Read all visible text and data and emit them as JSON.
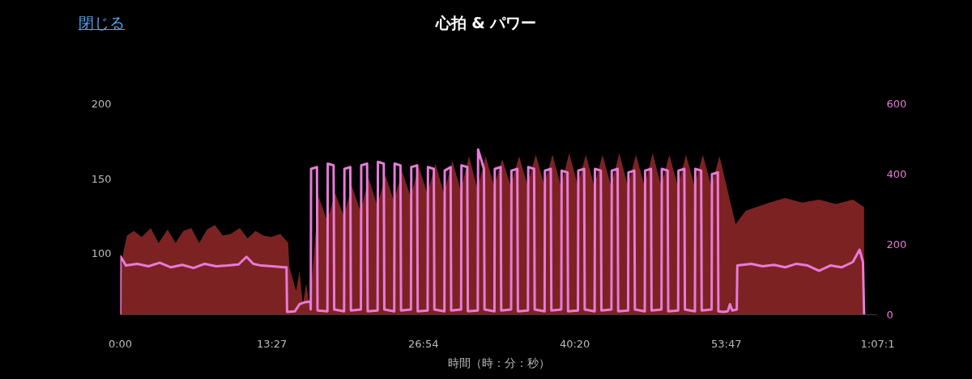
{
  "chart_data": {
    "type": "area",
    "title": "心拍 & パワー",
    "xlabel": "時間（時：分：秒）",
    "annotations": [
      "閉じる"
    ],
    "xlim": [
      0,
      67.2
    ],
    "xticks": [
      {
        "value": 0,
        "label": "0:00"
      },
      {
        "value": 13.45,
        "label": "13:27"
      },
      {
        "value": 26.9,
        "label": "26:54"
      },
      {
        "value": 40.33,
        "label": "40:20"
      },
      {
        "value": 53.78,
        "label": "53:47"
      },
      {
        "value": 67.2,
        "label": "1:07:1"
      }
    ],
    "ylim": [
      59,
      200
    ],
    "yticks": [
      100,
      150,
      200
    ],
    "y2lim": [
      0,
      600
    ],
    "y2ticks": [
      0,
      200,
      400,
      600
    ],
    "grid": false,
    "series": [
      {
        "axis": "y",
        "color": "#7d2222",
        "x": [
          0,
          0.3,
          0.6,
          1.2,
          1.9,
          2.7,
          3.4,
          4.2,
          4.9,
          5.6,
          6.3,
          7.0,
          7.7,
          8.4,
          9.1,
          9.8,
          10.6,
          11.3,
          12.0,
          12.7,
          13.4,
          14.2,
          14.9,
          15.0,
          15.3,
          15.6,
          15.9,
          16.2,
          16.5,
          16.8,
          17.6,
          18.35,
          19.08,
          19.83,
          20.56,
          21.31,
          22.05,
          22.8,
          23.53,
          24.28,
          25.01,
          25.76,
          26.49,
          27.24,
          27.97,
          28.72,
          29.46,
          30.21,
          30.94,
          31.69,
          32.42,
          33.17,
          33.9,
          34.65,
          35.38,
          36.13,
          36.87,
          37.62,
          38.35,
          39.1,
          39.83,
          40.58,
          41.31,
          42.06,
          42.79,
          43.54,
          44.28,
          45.03,
          45.76,
          46.51,
          47.24,
          47.99,
          48.72,
          49.47,
          50.2,
          50.95,
          51.69,
          52.44,
          53.17,
          54.6,
          55.5,
          57.6,
          59,
          60.5,
          62,
          63.5,
          65,
          66.0
        ],
        "values": [
          85,
          102,
          112,
          115,
          111,
          117,
          107,
          116,
          107,
          115,
          117,
          107,
          116,
          119,
          112,
          113,
          117,
          110,
          115,
          112,
          111,
          113,
          107,
          91,
          83,
          75,
          88,
          66,
          80,
          64,
          138,
          122,
          140,
          125,
          145,
          128,
          150,
          132,
          152,
          135,
          155,
          138,
          158,
          140,
          160,
          140,
          162,
          142,
          165,
          143,
          165,
          145,
          163,
          145,
          165,
          146,
          166,
          146,
          166,
          145,
          167,
          146,
          166,
          145,
          166,
          145,
          167,
          145,
          166,
          145,
          167,
          145,
          166,
          145,
          166,
          145,
          166,
          145,
          165,
          119.5,
          128.6,
          134,
          137,
          134,
          136,
          133,
          136,
          131
        ]
      },
      {
        "type": "line",
        "axis": "y2",
        "color": "#e87ad8",
        "x": [
          0,
          0.02,
          0.5,
          1.5,
          2.5,
          3.5,
          4.5,
          5.5,
          6.5,
          7.5,
          8.5,
          9.5,
          10.5,
          11.2,
          11.8,
          12.5,
          13.5,
          14.5,
          14.75,
          14.8,
          15.5,
          15.9,
          16.3,
          16.85,
          16.9,
          16.93,
          17.45,
          17.5,
          18.38,
          18.41,
          18.93,
          18.98,
          19.86,
          19.89,
          20.41,
          20.46,
          21.35,
          21.38,
          21.9,
          21.95,
          22.83,
          22.86,
          23.38,
          23.43,
          24.31,
          24.34,
          24.86,
          24.91,
          25.79,
          25.82,
          26.34,
          26.39,
          27.27,
          27.3,
          27.82,
          27.87,
          28.76,
          28.79,
          29.31,
          29.36,
          30.24,
          30.27,
          30.79,
          30.84,
          31.72,
          31.75,
          32.27,
          32.32,
          33.2,
          33.23,
          33.75,
          33.8,
          34.68,
          34.71,
          35.23,
          35.28,
          36.17,
          36.2,
          36.72,
          36.77,
          37.65,
          37.68,
          38.2,
          38.25,
          39.13,
          39.16,
          39.68,
          39.73,
          40.61,
          40.64,
          41.16,
          41.21,
          42.09,
          42.12,
          42.64,
          42.69,
          43.58,
          43.61,
          44.13,
          44.18,
          45.06,
          45.09,
          45.61,
          45.66,
          46.54,
          46.57,
          47.09,
          47.14,
          48.02,
          48.05,
          48.57,
          48.62,
          49.5,
          49.53,
          50.05,
          50.1,
          50.99,
          51.02,
          51.54,
          51.59,
          52.47,
          52.5,
          53.02,
          53.07,
          53.5,
          53.9,
          54.1,
          54.3,
          54.7,
          54.75,
          56,
          57,
          58,
          59,
          60,
          61,
          62,
          63,
          64,
          65,
          65.6,
          65.9,
          66.0
        ],
        "values": [
          0,
          166,
          140,
          145,
          138,
          148,
          135,
          142,
          133,
          145,
          138,
          140,
          143,
          165,
          145,
          140,
          138,
          135,
          135,
          8,
          10,
          30,
          35,
          38,
          15,
          415,
          420,
          12,
          10,
          430,
          425,
          15,
          10,
          415,
          420,
          12,
          15,
          425,
          430,
          10,
          12,
          435,
          430,
          15,
          10,
          430,
          425,
          12,
          15,
          420,
          425,
          10,
          12,
          420,
          415,
          15,
          10,
          410,
          420,
          12,
          15,
          425,
          420,
          10,
          12,
          470,
          415,
          15,
          10,
          415,
          420,
          12,
          15,
          410,
          415,
          10,
          12,
          420,
          415,
          15,
          10,
          410,
          415,
          12,
          15,
          410,
          405,
          10,
          12,
          410,
          415,
          15,
          10,
          415,
          410,
          12,
          15,
          410,
          415,
          10,
          12,
          405,
          410,
          15,
          10,
          410,
          415,
          12,
          15,
          415,
          410,
          10,
          12,
          410,
          415,
          15,
          10,
          415,
          410,
          12,
          15,
          400,
          405,
          10,
          8,
          10,
          30,
          12,
          15,
          140,
          145,
          138,
          142,
          135,
          145,
          140,
          125,
          140,
          135,
          150,
          185,
          150,
          0
        ]
      }
    ]
  }
}
